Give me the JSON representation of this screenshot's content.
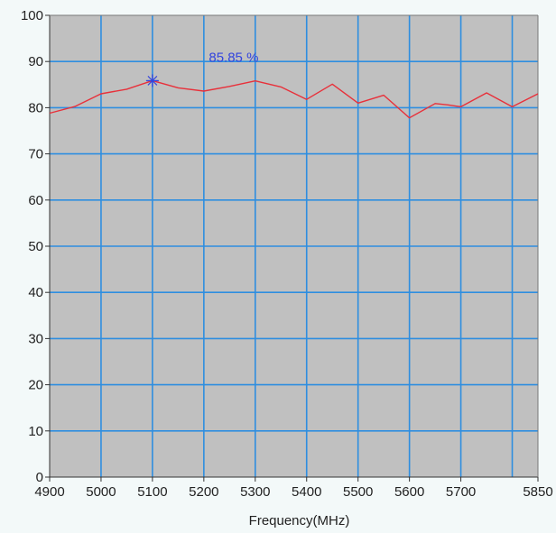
{
  "chart_data": {
    "type": "line",
    "title": "",
    "xlabel": "Frequency(MHz)",
    "ylabel": "",
    "xlim": [
      4900,
      5850
    ],
    "ylim": [
      0,
      100
    ],
    "x_ticks": [
      4900,
      5000,
      5100,
      5200,
      5300,
      5400,
      5500,
      5600,
      5700,
      5850
    ],
    "x_gridlines": [
      5000,
      5100,
      5200,
      5300,
      5400,
      5500,
      5600,
      5700,
      5800
    ],
    "y_ticks": [
      0,
      10,
      20,
      30,
      40,
      50,
      60,
      70,
      80,
      90,
      100
    ],
    "grid": true,
    "series": [
      {
        "color": "#e8303a",
        "x": [
          4900,
          4950,
          5000,
          5050,
          5100,
          5150,
          5200,
          5250,
          5300,
          5350,
          5400,
          5450,
          5500,
          5550,
          5600,
          5650,
          5675,
          5700,
          5750,
          5800,
          5850
        ],
        "y": [
          78.8,
          80.3,
          83.0,
          84.0,
          85.85,
          84.3,
          83.6,
          84.6,
          85.8,
          84.5,
          81.8,
          85.1,
          81.0,
          82.7,
          77.8,
          80.9,
          80.6,
          80.2,
          83.2,
          80.2,
          83.0
        ]
      }
    ],
    "marker": {
      "x": 5100,
      "y": 85.85,
      "label": "85.85 %",
      "color": "#3344dd"
    },
    "colors": {
      "plot_background": "#c0c0c0",
      "grid": "#2e8ee0",
      "page_background": "#f3f9f9"
    }
  }
}
